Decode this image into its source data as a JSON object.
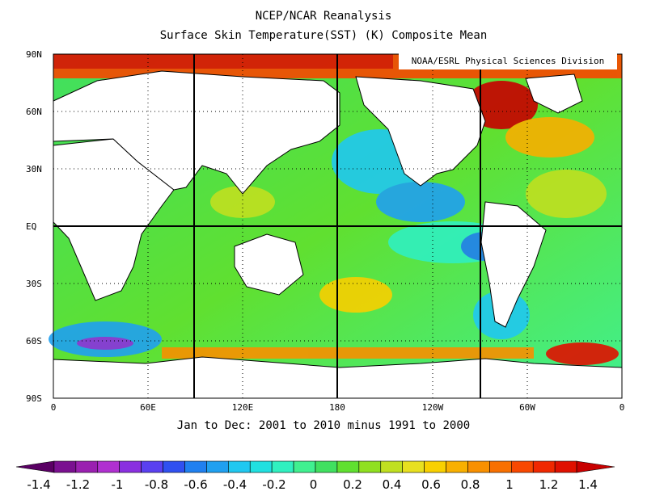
{
  "title": "NCEP/NCAR Reanalysis",
  "subtitle": "Surface Skin Temperature(SST) (K) Composite Mean",
  "credit": "NOAA/ESRL Physical Sciences Division",
  "period": "Jan to Dec: 2001 to 2010 minus 1991 to 2000",
  "lat_labels": [
    "90N",
    "60N",
    "30N",
    "EQ",
    "30S",
    "60S",
    "90S"
  ],
  "lon_labels": [
    "0",
    "60E",
    "120E",
    "180",
    "120W",
    "60W",
    "0"
  ],
  "colorbar": {
    "labels": [
      "-1.4",
      "-1.2",
      "-1",
      "-0.8",
      "-0.6",
      "-0.4",
      "-0.2",
      "0",
      "0.2",
      "0.4",
      "0.6",
      "0.8",
      "1",
      "1.2",
      "1.4"
    ],
    "colors": [
      "#5a0064",
      "#7a1090",
      "#9a20b0",
      "#b030d0",
      "#8a30e0",
      "#5a40f0",
      "#3050f0",
      "#2080f0",
      "#20a0f0",
      "#20c8f0",
      "#20e0e0",
      "#30f0c0",
      "#40f090",
      "#40e060",
      "#60e030",
      "#90e020",
      "#c0e020",
      "#e8e020",
      "#f8d000",
      "#f8b000",
      "#f89000",
      "#f87000",
      "#f84800",
      "#f02800",
      "#e01000",
      "#c80000"
    ],
    "units": "K"
  },
  "map_colors": {
    "land": "#ffffff",
    "ocean_base": "#60e030",
    "grid": "#000000"
  }
}
